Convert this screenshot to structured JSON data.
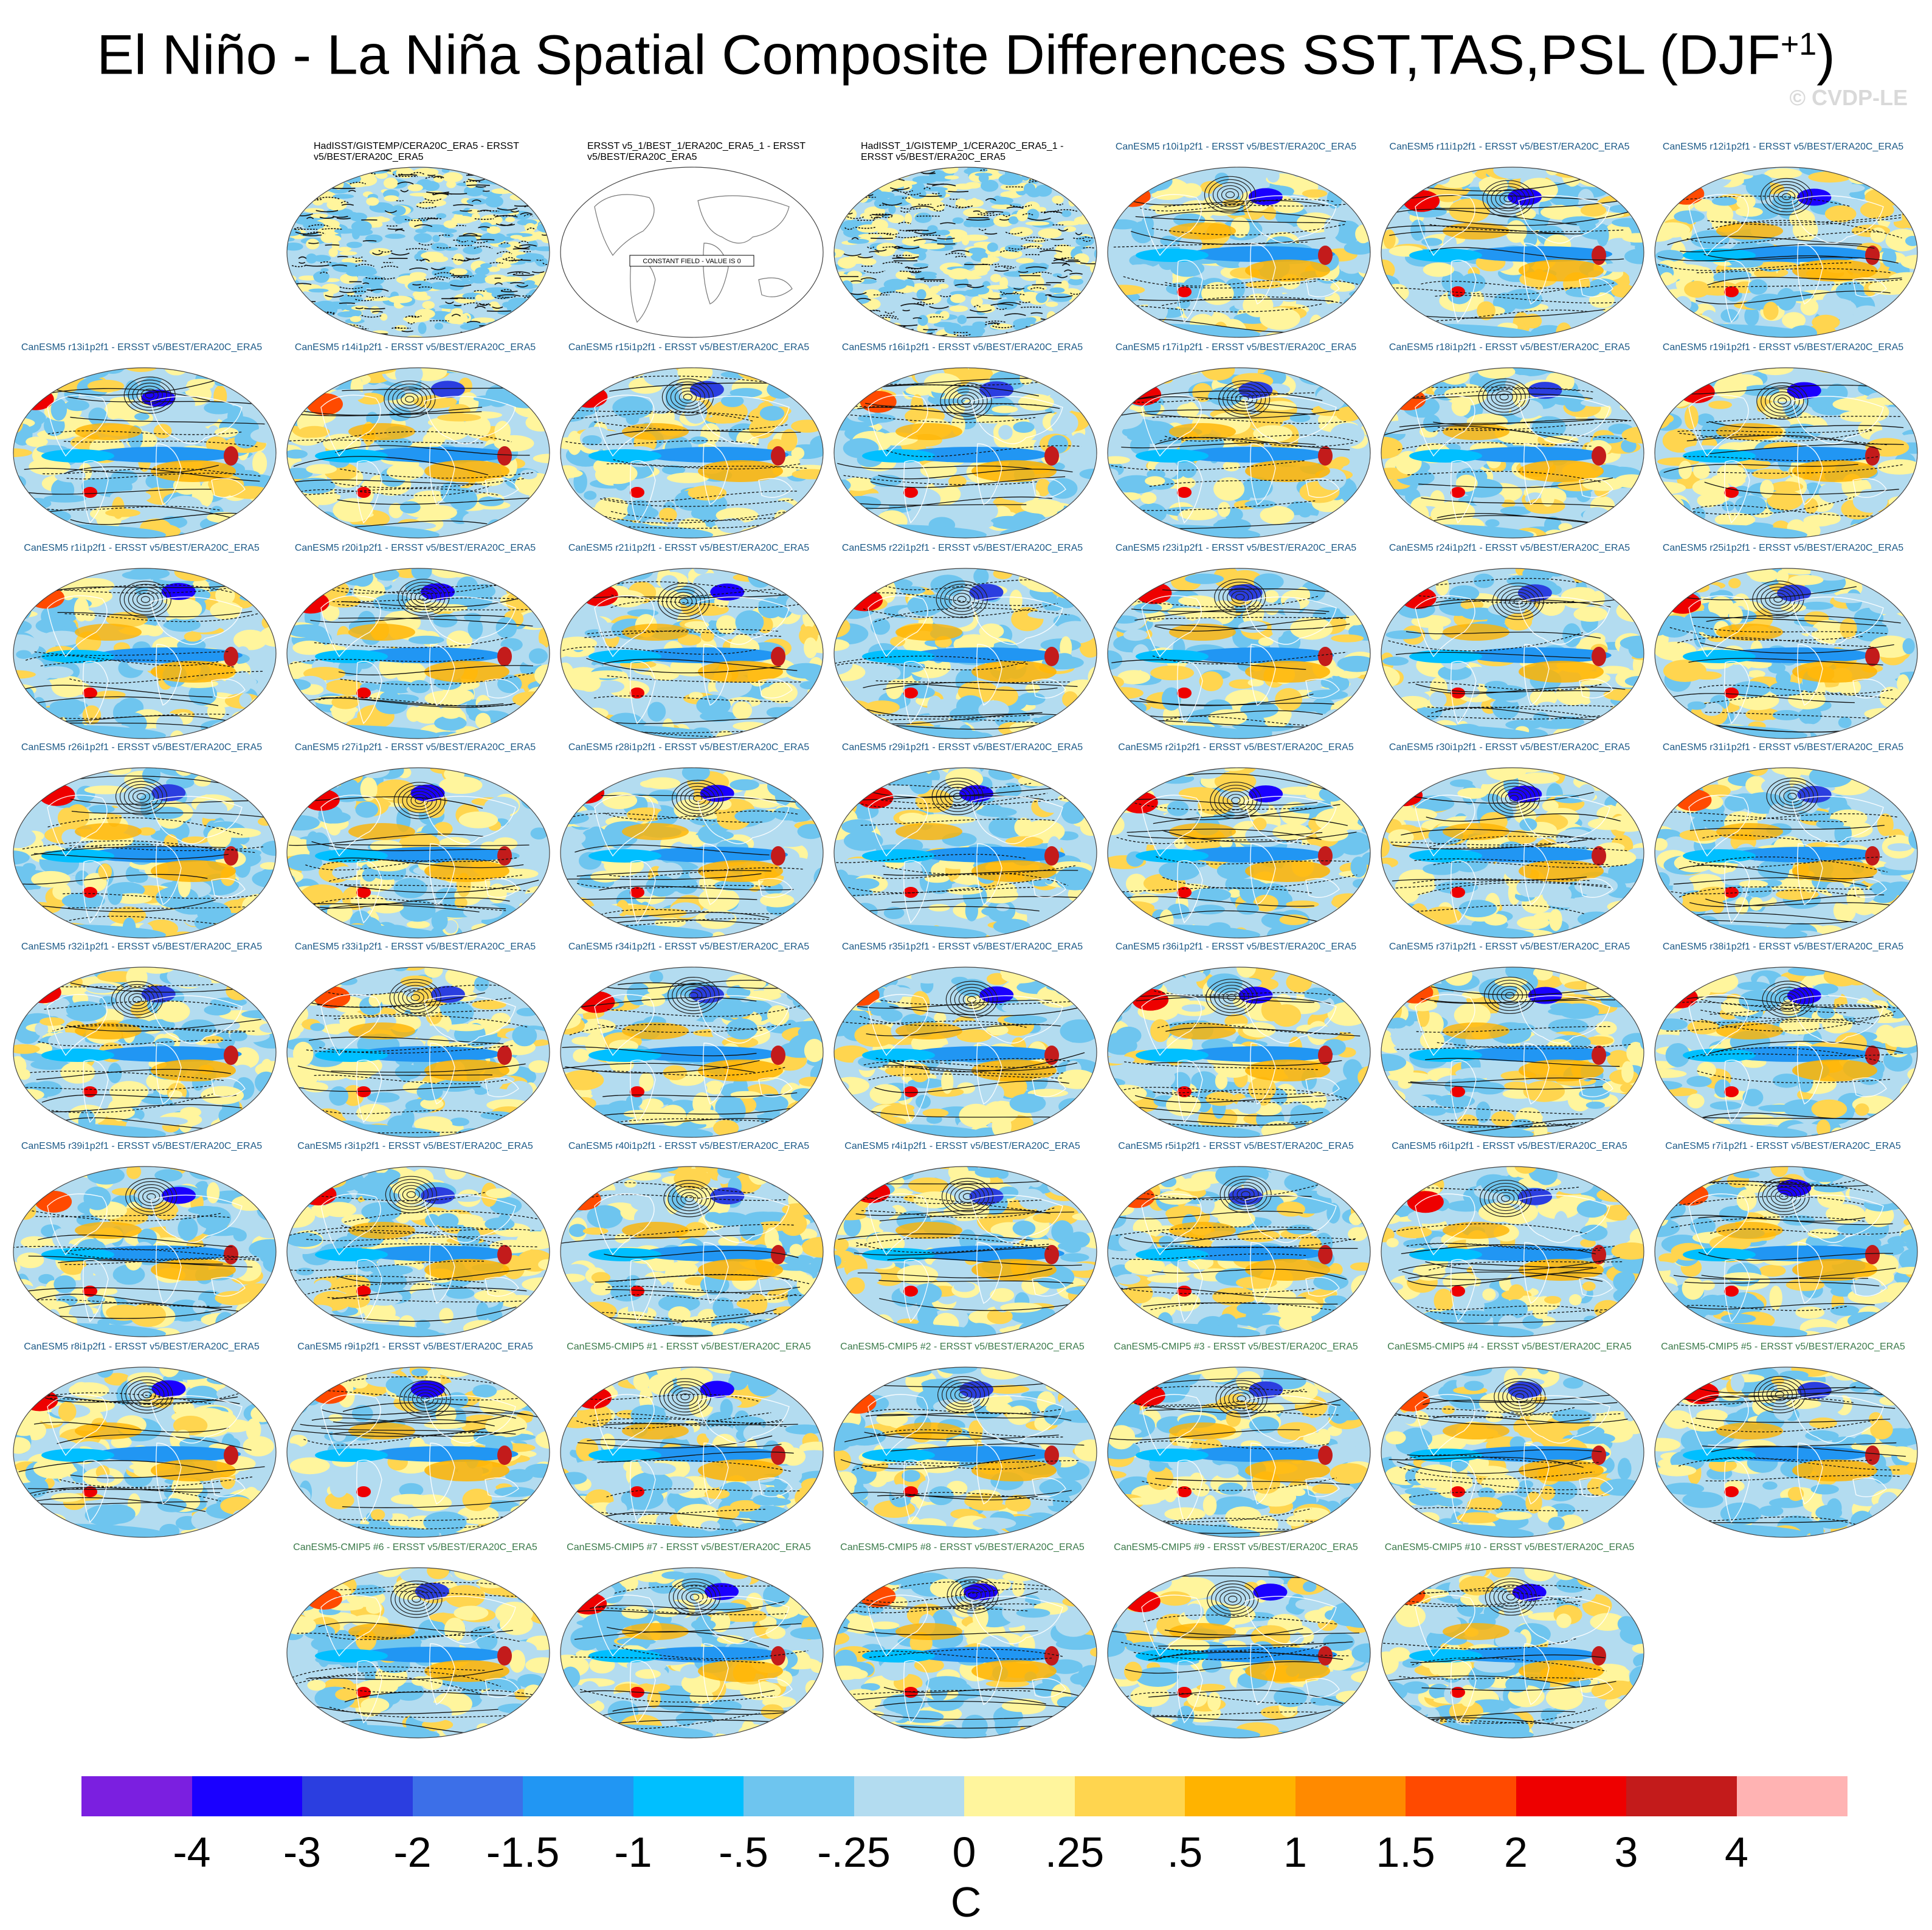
{
  "title": "El Niño - La Niña Spatial Composite Differences SST,TAS,PSL (DJF",
  "title_sup": "+1",
  "title_close": ")",
  "watermark": "© CVDP-LE",
  "units_label": "C",
  "chart_data": {
    "type": "heatmap",
    "title": "El Niño - La Niña Spatial Composite Differences SST,TAS,PSL (DJF+1)",
    "colorbar": {
      "levels": [
        "-4",
        "-3",
        "-2",
        "-1.5",
        "-1",
        "-.5",
        "-.25",
        "0",
        ".25",
        ".5",
        "1",
        "1.5",
        "2",
        "3",
        "4"
      ],
      "colors": [
        "#7b1fe0",
        "#1a00ff",
        "#2b3ee0",
        "#3c6fe8",
        "#2196f3",
        "#00bfff",
        "#6ec5ef",
        "#b3dcf0",
        "#fff59d",
        "#ffd54f",
        "#ffb300",
        "#ff8a00",
        "#ff4a00",
        "#ee0000",
        "#c31b1b",
        "#ffb3b3"
      ],
      "units": "C"
    },
    "panels": [
      {
        "row": 0,
        "col": 1,
        "kind": "obs",
        "title": "HadISST/GISTEMP/CERA20C_ERA5 - ERSST v5/BEST/ERA20C_ERA5"
      },
      {
        "row": 0,
        "col": 2,
        "kind": "const",
        "title": "ERSST v5_1/BEST_1/ERA20C_ERA5_1 - ERSST v5/BEST/ERA20C_ERA5",
        "note": "CONSTANT FIELD - VALUE IS 0"
      },
      {
        "row": 0,
        "col": 3,
        "kind": "obs",
        "title": "HadISST_1/GISTEMP_1/CERA20C_ERA5_1 - ERSST v5/BEST/ERA20C_ERA5"
      },
      {
        "row": 0,
        "col": 4,
        "kind": "model",
        "title": "CanESM5 r10i1p2f1 - ERSST v5/BEST/ERA20C_ERA5"
      },
      {
        "row": 0,
        "col": 5,
        "kind": "model",
        "title": "CanESM5 r11i1p2f1 - ERSST v5/BEST/ERA20C_ERA5"
      },
      {
        "row": 0,
        "col": 6,
        "kind": "model",
        "title": "CanESM5 r12i1p2f1 - ERSST v5/BEST/ERA20C_ERA5"
      },
      {
        "row": 1,
        "col": 0,
        "kind": "model",
        "title": "CanESM5 r13i1p2f1 - ERSST v5/BEST/ERA20C_ERA5"
      },
      {
        "row": 1,
        "col": 1,
        "kind": "model",
        "title": "CanESM5 r14i1p2f1 - ERSST v5/BEST/ERA20C_ERA5"
      },
      {
        "row": 1,
        "col": 2,
        "kind": "model",
        "title": "CanESM5 r15i1p2f1 - ERSST v5/BEST/ERA20C_ERA5"
      },
      {
        "row": 1,
        "col": 3,
        "kind": "model",
        "title": "CanESM5 r16i1p2f1 - ERSST v5/BEST/ERA20C_ERA5"
      },
      {
        "row": 1,
        "col": 4,
        "kind": "model",
        "title": "CanESM5 r17i1p2f1 - ERSST v5/BEST/ERA20C_ERA5"
      },
      {
        "row": 1,
        "col": 5,
        "kind": "model",
        "title": "CanESM5 r18i1p2f1 - ERSST v5/BEST/ERA20C_ERA5"
      },
      {
        "row": 1,
        "col": 6,
        "kind": "model",
        "title": "CanESM5 r19i1p2f1 - ERSST v5/BEST/ERA20C_ERA5"
      },
      {
        "row": 2,
        "col": 0,
        "kind": "model",
        "title": "CanESM5 r1i1p2f1 - ERSST v5/BEST/ERA20C_ERA5"
      },
      {
        "row": 2,
        "col": 1,
        "kind": "model",
        "title": "CanESM5 r20i1p2f1 - ERSST v5/BEST/ERA20C_ERA5"
      },
      {
        "row": 2,
        "col": 2,
        "kind": "model",
        "title": "CanESM5 r21i1p2f1 - ERSST v5/BEST/ERA20C_ERA5"
      },
      {
        "row": 2,
        "col": 3,
        "kind": "model",
        "title": "CanESM5 r22i1p2f1 - ERSST v5/BEST/ERA20C_ERA5"
      },
      {
        "row": 2,
        "col": 4,
        "kind": "model",
        "title": "CanESM5 r23i1p2f1 - ERSST v5/BEST/ERA20C_ERA5"
      },
      {
        "row": 2,
        "col": 5,
        "kind": "model",
        "title": "CanESM5 r24i1p2f1 - ERSST v5/BEST/ERA20C_ERA5"
      },
      {
        "row": 2,
        "col": 6,
        "kind": "model",
        "title": "CanESM5 r25i1p2f1 - ERSST v5/BEST/ERA20C_ERA5"
      },
      {
        "row": 3,
        "col": 0,
        "kind": "model",
        "title": "CanESM5 r26i1p2f1 - ERSST v5/BEST/ERA20C_ERA5"
      },
      {
        "row": 3,
        "col": 1,
        "kind": "model",
        "title": "CanESM5 r27i1p2f1 - ERSST v5/BEST/ERA20C_ERA5"
      },
      {
        "row": 3,
        "col": 2,
        "kind": "model",
        "title": "CanESM5 r28i1p2f1 - ERSST v5/BEST/ERA20C_ERA5"
      },
      {
        "row": 3,
        "col": 3,
        "kind": "model",
        "title": "CanESM5 r29i1p2f1 - ERSST v5/BEST/ERA20C_ERA5"
      },
      {
        "row": 3,
        "col": 4,
        "kind": "model",
        "title": "CanESM5 r2i1p2f1 - ERSST v5/BEST/ERA20C_ERA5"
      },
      {
        "row": 3,
        "col": 5,
        "kind": "model",
        "title": "CanESM5 r30i1p2f1 - ERSST v5/BEST/ERA20C_ERA5"
      },
      {
        "row": 3,
        "col": 6,
        "kind": "model",
        "title": "CanESM5 r31i1p2f1 - ERSST v5/BEST/ERA20C_ERA5"
      },
      {
        "row": 4,
        "col": 0,
        "kind": "model",
        "title": "CanESM5 r32i1p2f1 - ERSST v5/BEST/ERA20C_ERA5"
      },
      {
        "row": 4,
        "col": 1,
        "kind": "model",
        "title": "CanESM5 r33i1p2f1 - ERSST v5/BEST/ERA20C_ERA5"
      },
      {
        "row": 4,
        "col": 2,
        "kind": "model",
        "title": "CanESM5 r34i1p2f1 - ERSST v5/BEST/ERA20C_ERA5"
      },
      {
        "row": 4,
        "col": 3,
        "kind": "model",
        "title": "CanESM5 r35i1p2f1 - ERSST v5/BEST/ERA20C_ERA5"
      },
      {
        "row": 4,
        "col": 4,
        "kind": "model",
        "title": "CanESM5 r36i1p2f1 - ERSST v5/BEST/ERA20C_ERA5"
      },
      {
        "row": 4,
        "col": 5,
        "kind": "model",
        "title": "CanESM5 r37i1p2f1 - ERSST v5/BEST/ERA20C_ERA5"
      },
      {
        "row": 4,
        "col": 6,
        "kind": "model",
        "title": "CanESM5 r38i1p2f1 - ERSST v5/BEST/ERA20C_ERA5"
      },
      {
        "row": 5,
        "col": 0,
        "kind": "model",
        "title": "CanESM5 r39i1p2f1 - ERSST v5/BEST/ERA20C_ERA5"
      },
      {
        "row": 5,
        "col": 1,
        "kind": "model",
        "title": "CanESM5 r3i1p2f1 - ERSST v5/BEST/ERA20C_ERA5"
      },
      {
        "row": 5,
        "col": 2,
        "kind": "model",
        "title": "CanESM5 r40i1p2f1 - ERSST v5/BEST/ERA20C_ERA5"
      },
      {
        "row": 5,
        "col": 3,
        "kind": "model",
        "title": "CanESM5 r4i1p2f1 - ERSST v5/BEST/ERA20C_ERA5"
      },
      {
        "row": 5,
        "col": 4,
        "kind": "model",
        "title": "CanESM5 r5i1p2f1 - ERSST v5/BEST/ERA20C_ERA5"
      },
      {
        "row": 5,
        "col": 5,
        "kind": "model",
        "title": "CanESM5 r6i1p2f1 - ERSST v5/BEST/ERA20C_ERA5"
      },
      {
        "row": 5,
        "col": 6,
        "kind": "model",
        "title": "CanESM5 r7i1p2f1 - ERSST v5/BEST/ERA20C_ERA5"
      },
      {
        "row": 6,
        "col": 0,
        "kind": "model",
        "title": "CanESM5 r8i1p2f1 - ERSST v5/BEST/ERA20C_ERA5"
      },
      {
        "row": 6,
        "col": 1,
        "kind": "model",
        "title": "CanESM5 r9i1p2f1 - ERSST v5/BEST/ERA20C_ERA5"
      },
      {
        "row": 6,
        "col": 2,
        "kind": "cmip5",
        "title": "CanESM5-CMIP5 #1 - ERSST v5/BEST/ERA20C_ERA5"
      },
      {
        "row": 6,
        "col": 3,
        "kind": "cmip5",
        "title": "CanESM5-CMIP5 #2 - ERSST v5/BEST/ERA20C_ERA5"
      },
      {
        "row": 6,
        "col": 4,
        "kind": "cmip5",
        "title": "CanESM5-CMIP5 #3 - ERSST v5/BEST/ERA20C_ERA5"
      },
      {
        "row": 6,
        "col": 5,
        "kind": "cmip5",
        "title": "CanESM5-CMIP5 #4 - ERSST v5/BEST/ERA20C_ERA5"
      },
      {
        "row": 6,
        "col": 6,
        "kind": "cmip5",
        "title": "CanESM5-CMIP5 #5 - ERSST v5/BEST/ERA20C_ERA5"
      },
      {
        "row": 7,
        "col": 1,
        "kind": "cmip5",
        "title": "CanESM5-CMIP5 #6 - ERSST v5/BEST/ERA20C_ERA5"
      },
      {
        "row": 7,
        "col": 2,
        "kind": "cmip5",
        "title": "CanESM5-CMIP5 #7 - ERSST v5/BEST/ERA20C_ERA5"
      },
      {
        "row": 7,
        "col": 3,
        "kind": "cmip5",
        "title": "CanESM5-CMIP5 #8 - ERSST v5/BEST/ERA20C_ERA5"
      },
      {
        "row": 7,
        "col": 4,
        "kind": "cmip5",
        "title": "CanESM5-CMIP5 #9 - ERSST v5/BEST/ERA20C_ERA5"
      },
      {
        "row": 7,
        "col": 5,
        "kind": "cmip5",
        "title": "CanESM5-CMIP5 #10 - ERSST v5/BEST/ERA20C_ERA5"
      }
    ]
  }
}
